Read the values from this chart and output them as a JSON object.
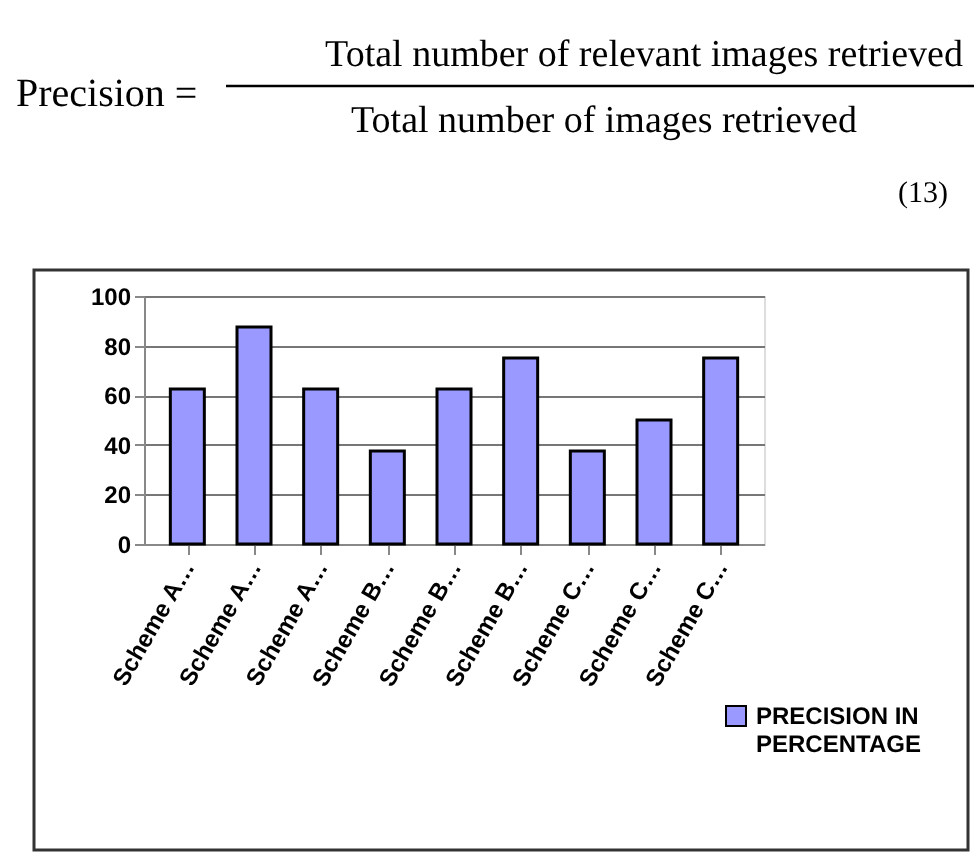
{
  "chart_data": {
    "type": "bar",
    "annotations": [
      "Precision =",
      "Total number of relevant images retrieved",
      "Total number of images retrieved",
      "(13)"
    ],
    "categories": [
      "Scheme A…",
      "Scheme A…",
      "Scheme A…",
      "Scheme B…",
      "Scheme B…",
      "Scheme B…",
      "Scheme C…",
      "Scheme C…",
      "Scheme C…"
    ],
    "series": [
      {
        "name": "PRECISION IN PERCENTAGE",
        "color": "#9999ff",
        "values": [
          62.5,
          87.5,
          62.5,
          37.5,
          62.5,
          75,
          37.5,
          50,
          75
        ]
      }
    ],
    "ylim": [
      0,
      100
    ],
    "yticks": [
      0,
      20,
      40,
      60,
      80,
      100
    ],
    "grid": "y",
    "legend": "bottom right"
  }
}
